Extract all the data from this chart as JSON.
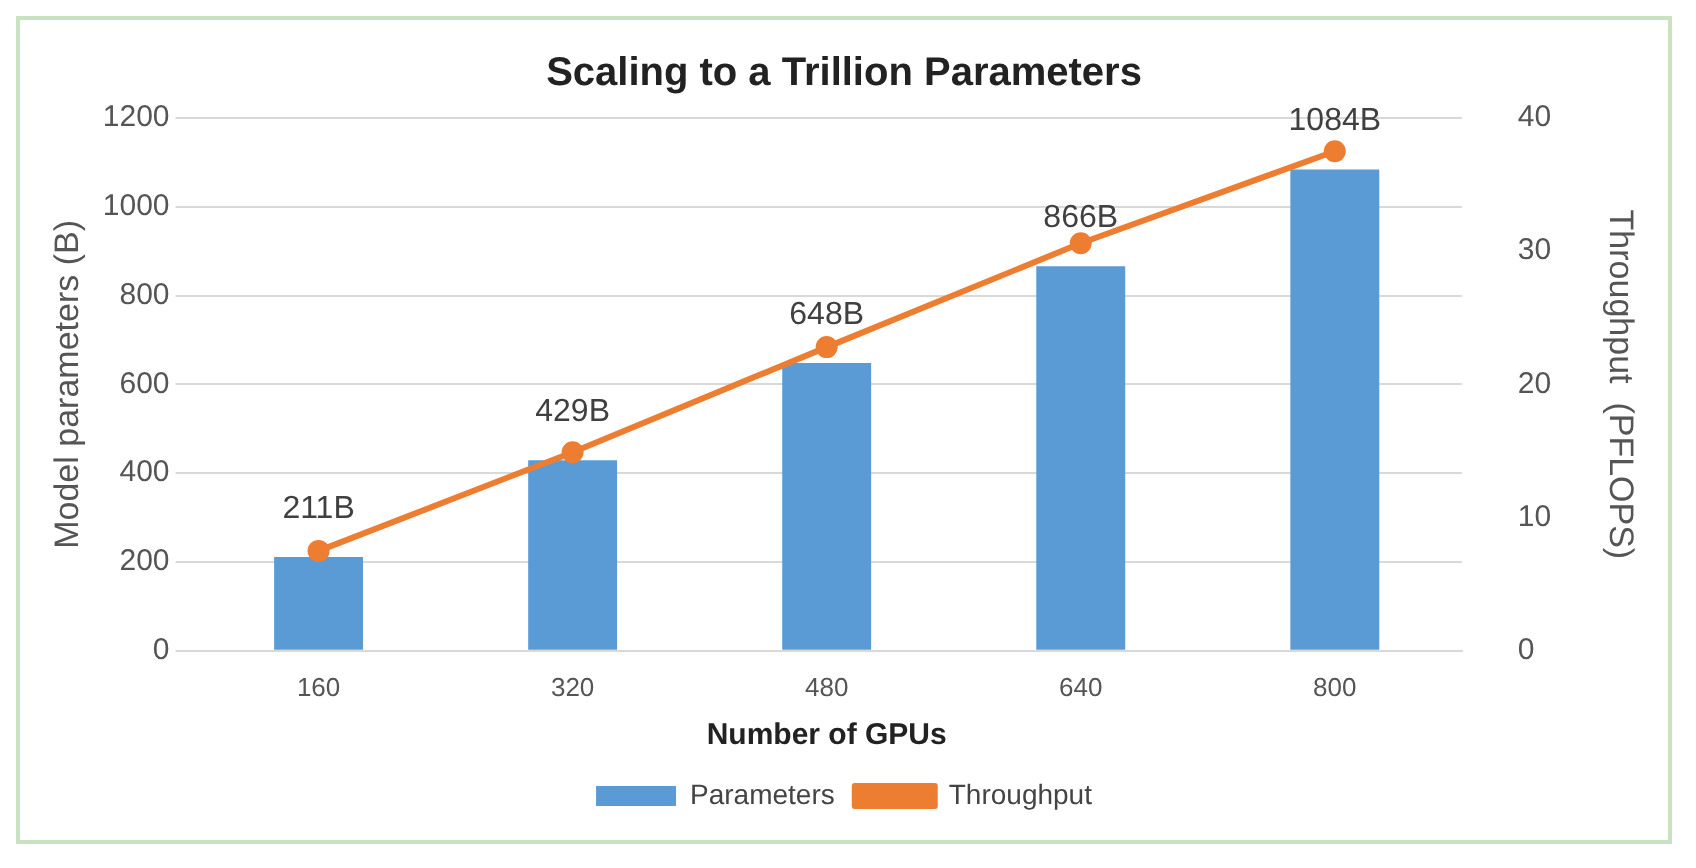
{
  "chart_data": {
    "type": "bar",
    "title": "Scaling to a Trillion Parameters",
    "xlabel": "Number of GPUs",
    "ylabel": "Model parameters (B)",
    "y2label": "Throughput  (PFLOPS)",
    "categories": [
      "160",
      "320",
      "480",
      "640",
      "800"
    ],
    "series": [
      {
        "name": "Parameters",
        "color": "#5b9bd5",
        "values": [
          211,
          429,
          648,
          866,
          1084
        ],
        "value_labels": [
          "211B",
          "429B",
          "648B",
          "866B",
          "1084B"
        ]
      },
      {
        "name": "Throughput",
        "type": "line",
        "axis": "y2",
        "color": "#ed7d31",
        "values": [
          7.5,
          14.9,
          22.8,
          30.6,
          37.5
        ]
      }
    ],
    "ylim": [
      0,
      1200
    ],
    "yticks": [
      0,
      200,
      400,
      600,
      800,
      1000,
      1200
    ],
    "y2lim": [
      0,
      40
    ],
    "y2ticks": [
      0,
      10,
      20,
      30,
      40
    ],
    "grid": "y",
    "legend": "bottom",
    "marker": "circle"
  }
}
